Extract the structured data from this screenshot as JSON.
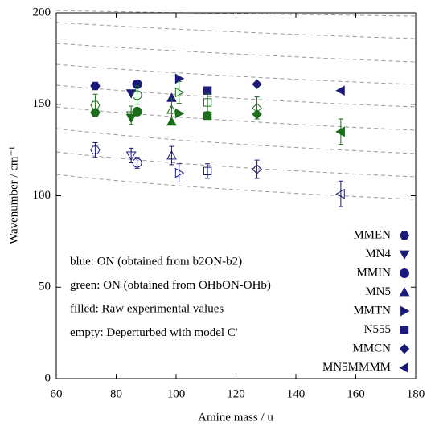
{
  "chart_data": {
    "type": "scatter",
    "xlabel": "Amine mass / u",
    "ylabel": "Wavenumber / cm⁻¹",
    "xlim": [
      60,
      180
    ],
    "ylim": [
      0,
      200
    ],
    "xticks": [
      60,
      80,
      100,
      120,
      140,
      160,
      180
    ],
    "yticks": [
      0,
      50,
      100,
      150,
      200
    ],
    "x": [
      73,
      85,
      87,
      98.5,
      101,
      110.5,
      127,
      155
    ],
    "legend": [
      "MMEN",
      "MN4",
      "MMIN",
      "MN5",
      "MMTN",
      "N555",
      "MMCN",
      "MN5MMMM"
    ],
    "legend_color": "#1a1a7a",
    "annotations": [
      "blue: ON (obtained from b2ON-b2)",
      "green: ON (obtained from OHbON-OHb)",
      "filled: Raw experimental values",
      "empty: Deperturbed with model C'"
    ],
    "series": [
      {
        "color": "#1a1a7a",
        "filled": true,
        "values": [
          160,
          156,
          161,
          153.5,
          164,
          157.5,
          161,
          157.5
        ]
      },
      {
        "color": "#1a1a7a",
        "filled": false,
        "values": [
          125,
          122,
          118,
          122,
          112.5,
          113.5,
          114.5,
          101
        ],
        "errors": [
          4,
          4,
          3,
          5,
          5,
          4,
          5,
          7
        ]
      },
      {
        "color": "#1a6e1a",
        "filled": true,
        "values": [
          145.5,
          142.5,
          146,
          140.5,
          145,
          143.7,
          144.6,
          135
        ]
      },
      {
        "color": "#1a6e1a",
        "filled": false,
        "values": [
          149.5,
          144,
          155,
          147,
          156.5,
          151,
          148,
          135
        ],
        "errors": [
          6,
          5,
          5,
          6,
          6,
          5,
          6,
          7
        ]
      }
    ]
  }
}
